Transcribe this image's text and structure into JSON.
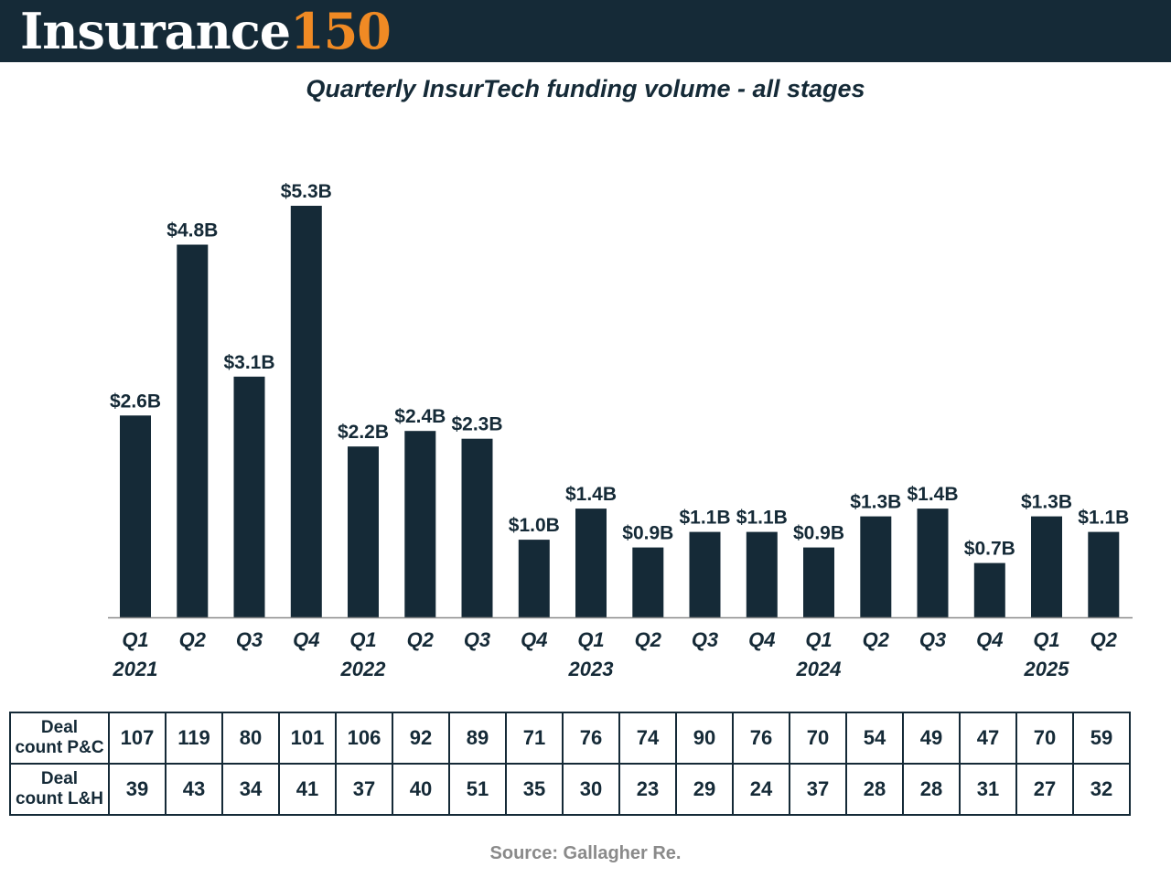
{
  "header": {
    "brand": "Insurance",
    "brand_number": "150"
  },
  "colors": {
    "header_bg": "#152a37",
    "bar": "#152a37",
    "brand_accent": "#f08a24",
    "source_text": "#8a8a8a"
  },
  "chart_data": {
    "type": "bar",
    "title": "Quarterly InsurTech funding volume - all stages",
    "xlabel": "",
    "ylabel": "",
    "unit": "USD billions",
    "ylim": [
      0,
      6
    ],
    "grid": false,
    "categories": [
      "Q1",
      "Q2",
      "Q3",
      "Q4",
      "Q1",
      "Q2",
      "Q3",
      "Q4",
      "Q1",
      "Q2",
      "Q3",
      "Q4",
      "Q1",
      "Q2",
      "Q3",
      "Q4",
      "Q1",
      "Q2"
    ],
    "year_labels": [
      "2021",
      "",
      "",
      "",
      "2022",
      "",
      "",
      "",
      "2023",
      "",
      "",
      "",
      "2024",
      "",
      "",
      "",
      "2025",
      ""
    ],
    "values": [
      2.6,
      4.8,
      3.1,
      5.3,
      2.2,
      2.4,
      2.3,
      1.0,
      1.4,
      0.9,
      1.1,
      1.1,
      0.9,
      1.3,
      1.4,
      0.7,
      1.3,
      1.1
    ],
    "value_labels": [
      "$2.6B",
      "$4.8B",
      "$3.1B",
      "$5.3B",
      "$2.2B",
      "$2.4B",
      "$2.3B",
      "$1.0B",
      "$1.4B",
      "$0.9B",
      "$1.1B",
      "$1.1B",
      "$0.9B",
      "$1.3B",
      "$1.4B",
      "$0.7B",
      "$1.3B",
      "$1.1B"
    ]
  },
  "deal_table": {
    "rows": [
      {
        "label_line1": "Deal",
        "label_line2": "count P&C",
        "values": [
          "107",
          "119",
          "80",
          "101",
          "106",
          "92",
          "89",
          "71",
          "76",
          "74",
          "90",
          "76",
          "70",
          "54",
          "49",
          "47",
          "70",
          "59"
        ]
      },
      {
        "label_line1": "Deal",
        "label_line2": "count L&H",
        "values": [
          "39",
          "43",
          "34",
          "41",
          "37",
          "40",
          "51",
          "35",
          "30",
          "23",
          "29",
          "24",
          "37",
          "28",
          "28",
          "31",
          "27",
          "32"
        ]
      }
    ]
  },
  "source": "Source: Gallagher Re."
}
